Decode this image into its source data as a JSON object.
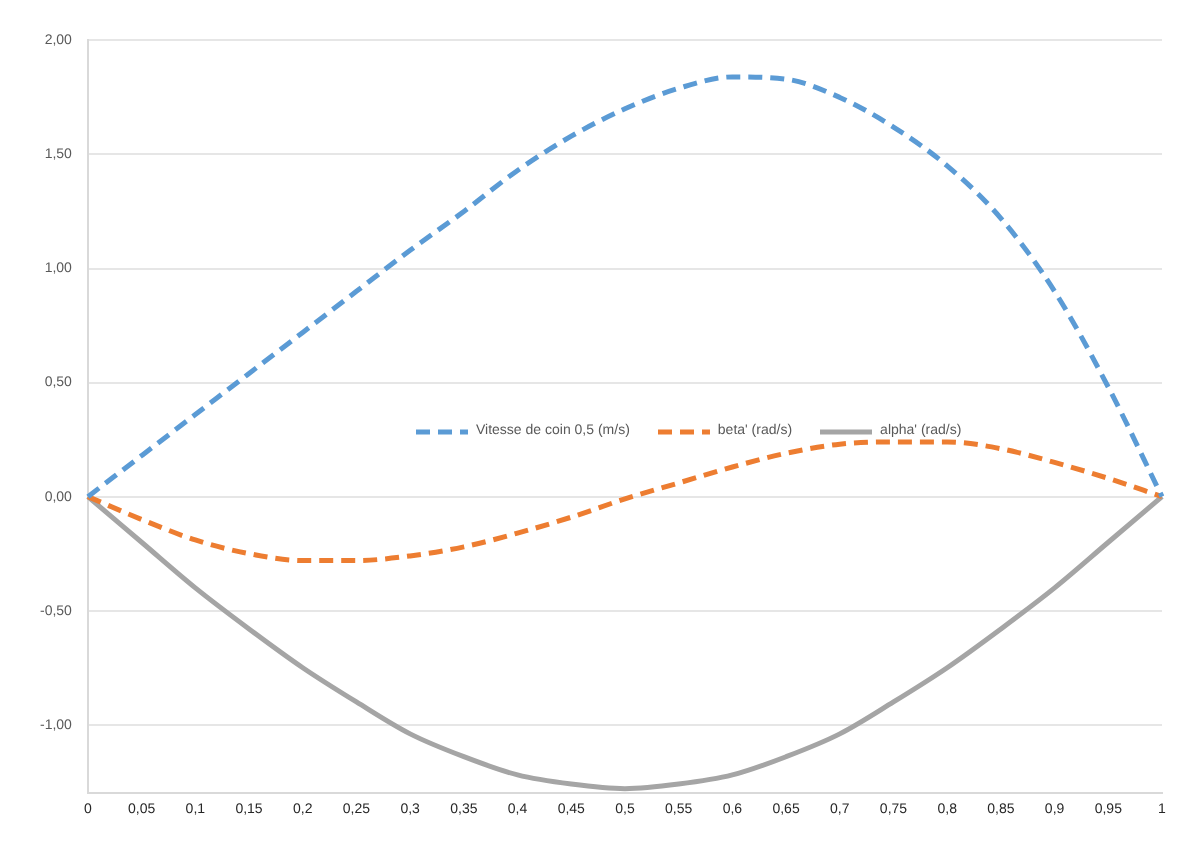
{
  "chart_data": {
    "type": "line",
    "categories": [
      "0",
      "0,05",
      "0,1",
      "0,15",
      "0,2",
      "0,25",
      "0,3",
      "0,35",
      "0,4",
      "0,45",
      "0,5",
      "0,55",
      "0,6",
      "0,65",
      "0,7",
      "0,75",
      "0,8",
      "0,85",
      "0,9",
      "0,95",
      "1"
    ],
    "series": [
      {
        "name": "Vitesse de coin 0,5 (m/s)",
        "color": "#5b9bd5",
        "line_style": "dashed",
        "values": [
          0,
          0.18,
          0.36,
          0.54,
          0.72,
          0.9,
          1.08,
          1.25,
          1.43,
          1.58,
          1.7,
          1.79,
          1.84,
          1.83,
          1.75,
          1.62,
          1.45,
          1.22,
          0.9,
          0.48,
          0
        ]
      },
      {
        "name": "beta' (rad/s)",
        "color": "#ed7d31",
        "line_style": "dashed",
        "values": [
          0,
          -0.1,
          -0.19,
          -0.25,
          -0.28,
          -0.28,
          -0.26,
          -0.22,
          -0.16,
          -0.09,
          -0.01,
          0.06,
          0.13,
          0.19,
          0.23,
          0.24,
          0.24,
          0.21,
          0.15,
          0.08,
          0
        ]
      },
      {
        "name": "alpha' (rad/s)",
        "color": "#a5a5a5",
        "line_style": "solid",
        "values": [
          0,
          -0.2,
          -0.4,
          -0.58,
          -0.75,
          -0.9,
          -1.04,
          -1.14,
          -1.22,
          -1.26,
          -1.28,
          -1.26,
          -1.22,
          -1.14,
          -1.04,
          -0.9,
          -0.75,
          -0.58,
          -0.4,
          -0.2,
          0
        ]
      }
    ],
    "ylim": [
      -1.3,
      2.0
    ],
    "yticks": [
      {
        "value": -1,
        "label": "-1,00"
      },
      {
        "value": -0.5,
        "label": "-0,50"
      },
      {
        "value": 0,
        "label": "0,00"
      },
      {
        "value": 0.5,
        "label": "0,50"
      },
      {
        "value": 1,
        "label": "1,00"
      },
      {
        "value": 1.5,
        "label": "1,50"
      },
      {
        "value": 2,
        "label": "2,00"
      }
    ],
    "grid": "y",
    "legend": "center",
    "marker": "none"
  }
}
